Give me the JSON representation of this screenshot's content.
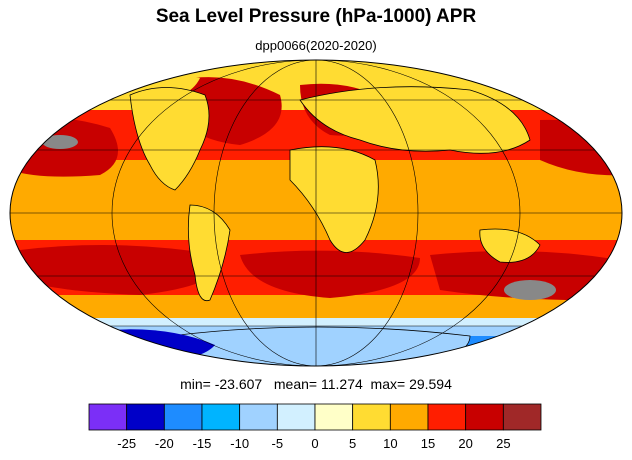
{
  "title": "Sea Level Pressure (hPa-1000) APR",
  "subtitle": "dpp0066(2020-2020)",
  "stats": {
    "min_label": "min=",
    "min_value": "-23.607",
    "mean_label": "mean=",
    "mean_value": "11.274",
    "max_label": "max=",
    "max_value": "29.594"
  },
  "colorbar": {
    "colors": [
      "#7b2ff7",
      "#0000c8",
      "#1e8cff",
      "#00b4ff",
      "#a0d2ff",
      "#d2f0ff",
      "#ffffc8",
      "#ffdc32",
      "#ffaa00",
      "#ff1e00",
      "#c80000",
      "#a02828"
    ],
    "tick_labels": [
      "-25",
      "-20",
      "-15",
      "-10",
      "-5",
      "0",
      "5",
      "10",
      "15",
      "20",
      "25"
    ]
  },
  "map": {
    "projection": "Mollweide",
    "field_colors": {
      "polar_low": "#0000c8",
      "antarctic_mid": "#1e8cff",
      "antarctic_light": "#a0d2ff",
      "antarctic_pale": "#d2f0ff",
      "subtropical_high": "#ff1e00",
      "strong_high": "#c80000",
      "peak_high": "#888888",
      "moderate": "#ffaa00",
      "weak": "#ffdc32"
    }
  }
}
